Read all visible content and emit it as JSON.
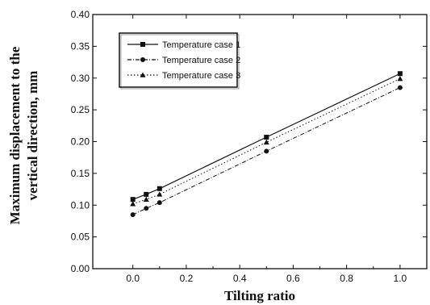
{
  "chart_data": {
    "type": "line",
    "title": "",
    "xlabel": "Tilting ratio",
    "ylabel_line1": "Maximum displacement to the",
    "ylabel_line2": "vertical direction, mm",
    "xlim": [
      -0.15,
      1.1
    ],
    "ylim": [
      0.0,
      0.4
    ],
    "xticks": [
      0.0,
      0.2,
      0.4,
      0.6,
      0.8,
      1.0
    ],
    "yticks": [
      0.0,
      0.05,
      0.1,
      0.15,
      0.2,
      0.25,
      0.3,
      0.35,
      0.4
    ],
    "xtick_labels": [
      "0.0",
      "0.2",
      "0.4",
      "0.6",
      "0.8",
      "1.0"
    ],
    "ytick_labels": [
      "0.00",
      "0.05",
      "0.10",
      "0.15",
      "0.20",
      "0.25",
      "0.30",
      "0.35",
      "0.40"
    ],
    "grid": false,
    "legend_position": "top-left",
    "series": [
      {
        "name": "Temperature case 1",
        "marker": "square",
        "line_style": "solid",
        "x": [
          0.0,
          0.05,
          0.1,
          0.5,
          1.0
        ],
        "y": [
          0.109,
          0.117,
          0.126,
          0.207,
          0.307
        ]
      },
      {
        "name": "Temperature case 2",
        "marker": "circle",
        "line_style": "dashdot",
        "x": [
          0.0,
          0.05,
          0.1,
          0.5,
          1.0
        ],
        "y": [
          0.085,
          0.095,
          0.104,
          0.185,
          0.285
        ]
      },
      {
        "name": "Temperature case 3",
        "marker": "triangle",
        "line_style": "dotted",
        "x": [
          0.0,
          0.05,
          0.1,
          0.5,
          1.0
        ],
        "y": [
          0.102,
          0.109,
          0.117,
          0.199,
          0.299
        ]
      }
    ]
  }
}
